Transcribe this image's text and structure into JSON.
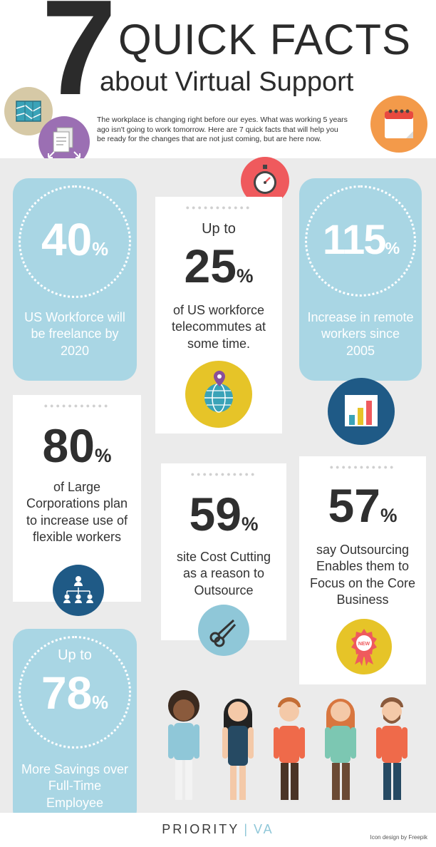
{
  "header": {
    "number": "7",
    "title_line1": "QUICK FACTS",
    "title_line2": "about Virtual Support",
    "intro": "The workplace is changing right before our eyes. What was working 5 years ago isn't going to work tomorrow.  Here are 7 quick facts that will help you be ready for the changes that are not just coming, but are here now."
  },
  "facts": [
    {
      "value": "40",
      "sign": "%",
      "text": "US Workforce will be freelance by 2020"
    },
    {
      "prefix": "Up to",
      "value": "25",
      "sign": "%",
      "text": "of US workforce telecommutes at some time."
    },
    {
      "value": "115",
      "sign": "%",
      "text": "Increase in remote workers since 2005"
    },
    {
      "value": "80",
      "sign": "%",
      "text": "of Large Corporations plan to increase use of flexible workers"
    },
    {
      "value": "59",
      "sign": "%",
      "text": "site Cost Cutting as a reason to Outsource"
    },
    {
      "value": "57",
      "sign": "%",
      "text": "say Outsourcing Enables them to Focus on the Core Business"
    },
    {
      "prefix": "Up to",
      "value": "78",
      "sign": "%",
      "text": "More Savings over Full-Time Employee"
    }
  ],
  "badge_label": "NEW",
  "icons": [
    "map-icon",
    "documents-icon",
    "calendar-icon",
    "stopwatch-icon",
    "globe-pin-icon",
    "bar-chart-icon",
    "org-chart-icon",
    "scissors-icon",
    "award-ribbon-icon"
  ],
  "colors": {
    "tile_blue": "#a9d6e4",
    "background_gray": "#ebebeb",
    "icon_yellow": "#e6c428",
    "icon_navy": "#1f5a86",
    "icon_red": "#ef5a5d",
    "icon_orange": "#f39a4a",
    "icon_purple": "#9b6fb3",
    "icon_tan": "#d6c9a6",
    "icon_lightblue": "#8fc7d8"
  },
  "footer": {
    "brand_name": "PRIORITY",
    "brand_separator": "|",
    "brand_suffix": "VA",
    "credit": "Icon design by Freepik"
  }
}
